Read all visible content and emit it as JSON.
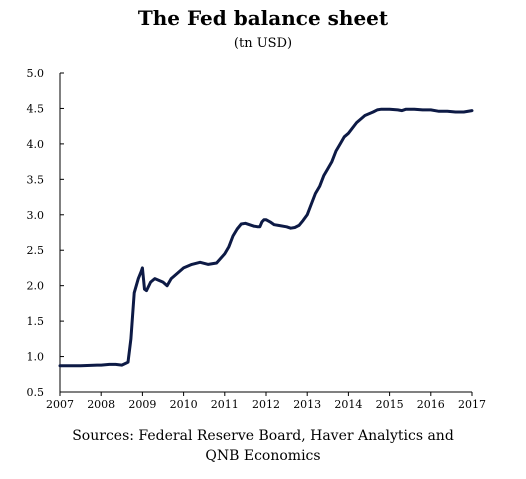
{
  "chart_data": {
    "type": "line",
    "title": "The Fed balance sheet",
    "subtitle": "(tn USD)",
    "xlabel": "",
    "ylabel": "",
    "ylim": [
      0.5,
      5.0
    ],
    "xlim": [
      2007,
      2017
    ],
    "y_ticks": [
      "5.0",
      "4.5",
      "4.0",
      "3.5",
      "3.0",
      "2.5",
      "2.0",
      "1.5",
      "1.0",
      "0.5"
    ],
    "x_ticks": [
      "2007",
      "2008",
      "2009",
      "2010",
      "2011",
      "2012",
      "2013",
      "2014",
      "2015",
      "2016",
      "2017"
    ],
    "grid": false,
    "line_color": "#0d1a45",
    "series": [
      {
        "x": [
          2007.0,
          2007.5,
          2007.9,
          2008.0,
          2008.2,
          2008.35,
          2008.5,
          2008.65,
          2008.72,
          2008.8,
          2008.9,
          2008.97,
          2009.0,
          2009.05,
          2009.1,
          2009.2,
          2009.3,
          2009.5,
          2009.6,
          2009.7,
          2009.8,
          2010.0,
          2010.2,
          2010.4,
          2010.6,
          2010.8,
          2011.0,
          2011.1,
          2011.2,
          2011.3,
          2011.4,
          2011.5,
          2011.6,
          2011.7,
          2011.8,
          2011.85,
          2011.9,
          2011.95,
          2012.0,
          2012.1,
          2012.2,
          2012.3,
          2012.5,
          2012.6,
          2012.7,
          2012.8,
          2012.9,
          2013.0,
          2013.1,
          2013.2,
          2013.3,
          2013.4,
          2013.5,
          2013.6,
          2013.7,
          2013.8,
          2013.9,
          2014.0,
          2014.2,
          2014.4,
          2014.6,
          2014.7,
          2014.8,
          2015.0,
          2015.2,
          2015.3,
          2015.4,
          2015.6,
          2015.8,
          2016.0,
          2016.2,
          2016.4,
          2016.6,
          2016.8,
          2017.0
        ],
        "y": [
          0.87,
          0.87,
          0.88,
          0.88,
          0.89,
          0.89,
          0.88,
          0.92,
          1.25,
          1.9,
          2.1,
          2.2,
          2.25,
          1.95,
          1.93,
          2.05,
          2.1,
          2.05,
          2.0,
          2.1,
          2.15,
          2.25,
          2.3,
          2.33,
          2.3,
          2.32,
          2.45,
          2.55,
          2.7,
          2.8,
          2.87,
          2.88,
          2.86,
          2.84,
          2.83,
          2.83,
          2.9,
          2.93,
          2.93,
          2.9,
          2.86,
          2.85,
          2.83,
          2.81,
          2.82,
          2.85,
          2.92,
          3.0,
          3.15,
          3.3,
          3.4,
          3.55,
          3.65,
          3.75,
          3.9,
          4.0,
          4.1,
          4.15,
          4.3,
          4.4,
          4.45,
          4.48,
          4.49,
          4.49,
          4.48,
          4.47,
          4.49,
          4.49,
          4.48,
          4.48,
          4.46,
          4.46,
          4.45,
          4.45,
          4.47
        ]
      }
    ]
  },
  "source_lines": [
    "Sources: Federal Reserve Board, Haver Analytics and",
    "QNB Economics"
  ]
}
